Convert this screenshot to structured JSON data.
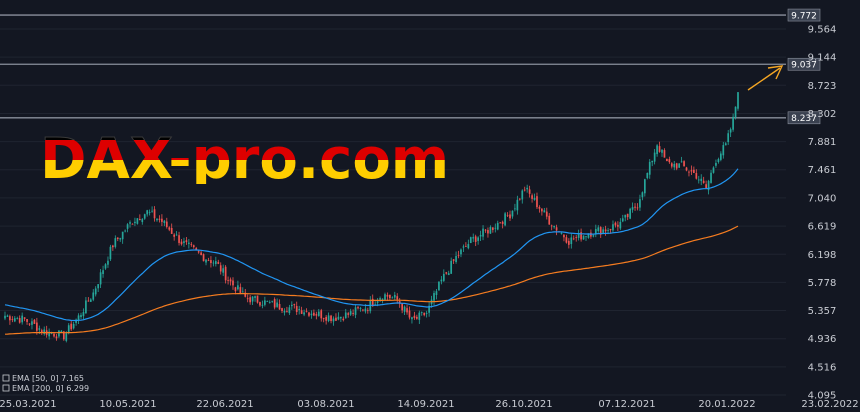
{
  "watermark": {
    "text": "DAX-pro.com",
    "flag_colors": [
      "#000000",
      "#dd0000",
      "#ffce00"
    ]
  },
  "colors": {
    "background": "#131722",
    "up_candle": "#26a69a",
    "down_candle": "#ef5350",
    "ema50": "#2196f3",
    "ema200": "#f57c20",
    "level_line": "#8a8f9c",
    "arrow": "#f5a623"
  },
  "legend": {
    "ema50_label": "EMA [50, 0] 7.165",
    "ema200_label": "EMA [200, 0] 6.299"
  },
  "chart_data": {
    "type": "candlestick",
    "x_tick_labels": [
      "25.03.2021",
      "10.05.2021",
      "22.06.2021",
      "03.08.2021",
      "14.09.2021",
      "26.10.2021",
      "07.12.2021",
      "20.01.2022",
      "23.02.2022"
    ],
    "y_tick_labels": [
      "9.772",
      "9.564",
      "9.144",
      "9.037",
      "8.723",
      "8.302",
      "8.237",
      "7.881",
      "7.461",
      "7.040",
      "6.619",
      "6.198",
      "5.778",
      "5.357",
      "4.936",
      "4.516",
      "4.095"
    ],
    "ylim": [
      4.095,
      9.982
    ],
    "levels": [
      {
        "value": 9.772,
        "label": "9.772"
      },
      {
        "value": 9.037,
        "label": "9.037"
      },
      {
        "value": 8.237,
        "label": "8.237"
      }
    ],
    "series": [
      {
        "name": "EMA [50, 0]",
        "last": 7.165
      },
      {
        "name": "EMA [200, 0]",
        "last": 6.299
      }
    ],
    "close_anchors": [
      [
        0,
        5.28
      ],
      [
        8,
        5.22
      ],
      [
        16,
        5.05
      ],
      [
        24,
        4.98
      ],
      [
        30,
        5.26
      ],
      [
        36,
        5.62
      ],
      [
        44,
        6.34
      ],
      [
        52,
        6.7
      ],
      [
        58,
        6.83
      ],
      [
        64,
        6.69
      ],
      [
        72,
        6.38
      ],
      [
        80,
        6.18
      ],
      [
        86,
        6.07
      ],
      [
        92,
        5.78
      ],
      [
        98,
        5.55
      ],
      [
        104,
        5.5
      ],
      [
        112,
        5.42
      ],
      [
        120,
        5.38
      ],
      [
        128,
        5.3
      ],
      [
        134,
        5.25
      ],
      [
        140,
        5.3
      ],
      [
        148,
        5.42
      ],
      [
        154,
        5.6
      ],
      [
        160,
        5.52
      ],
      [
        166,
        5.2
      ],
      [
        172,
        5.32
      ],
      [
        178,
        5.8
      ],
      [
        184,
        6.15
      ],
      [
        190,
        6.4
      ],
      [
        198,
        6.58
      ],
      [
        206,
        6.8
      ],
      [
        212,
        7.18
      ],
      [
        218,
        6.9
      ],
      [
        222,
        6.7
      ],
      [
        230,
        6.4
      ],
      [
        238,
        6.52
      ],
      [
        246,
        6.58
      ],
      [
        252,
        6.68
      ],
      [
        258,
        6.95
      ],
      [
        262,
        7.4
      ],
      [
        266,
        7.85
      ],
      [
        270,
        7.55
      ],
      [
        276,
        7.52
      ],
      [
        282,
        7.38
      ],
      [
        286,
        7.18
      ],
      [
        290,
        7.62
      ],
      [
        294,
        7.82
      ],
      [
        297,
        8.2
      ],
      [
        299,
        8.62
      ]
    ]
  }
}
